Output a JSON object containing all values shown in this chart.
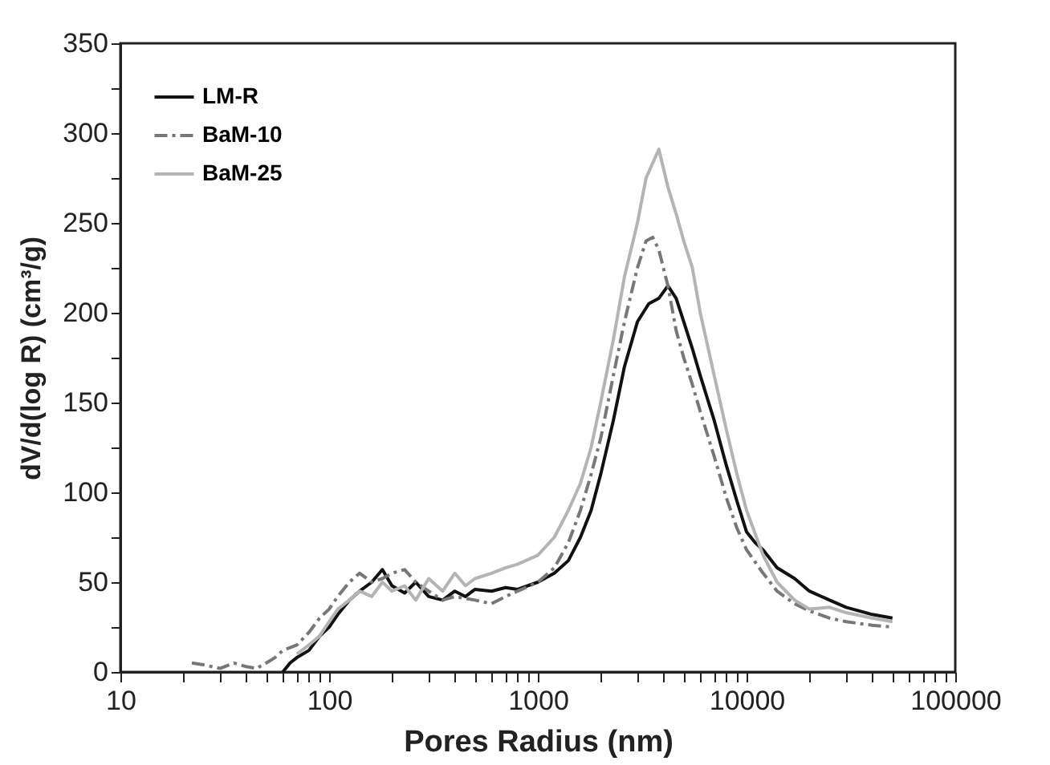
{
  "chart_data": {
    "type": "line",
    "xlabel": "Pores Radius (nm)",
    "ylabel": "dV/d(log R) (cm³/g)",
    "log": "x",
    "legend": "top left",
    "grid": false,
    "xlim": [
      10,
      100000
    ],
    "ylim": [
      0,
      350
    ],
    "xticks": [
      10,
      {
        "value": 20,
        "label": null
      },
      {
        "value": 30,
        "label": null
      },
      {
        "value": 40,
        "label": null
      },
      {
        "value": 50,
        "label": null
      },
      {
        "value": 60,
        "label": null
      },
      {
        "value": 70,
        "label": null
      },
      {
        "value": 80,
        "label": null
      },
      {
        "value": 90,
        "label": null
      },
      100,
      {
        "value": 200,
        "label": null
      },
      {
        "value": 300,
        "label": null
      },
      {
        "value": 400,
        "label": null
      },
      {
        "value": 500,
        "label": null
      },
      {
        "value": 600,
        "label": null
      },
      {
        "value": 700,
        "label": null
      },
      {
        "value": 800,
        "label": null
      },
      {
        "value": 900,
        "label": null
      },
      1000,
      {
        "value": 2000,
        "label": null
      },
      {
        "value": 3000,
        "label": null
      },
      {
        "value": 4000,
        "label": null
      },
      {
        "value": 5000,
        "label": null
      },
      {
        "value": 6000,
        "label": null
      },
      {
        "value": 7000,
        "label": null
      },
      {
        "value": 8000,
        "label": null
      },
      {
        "value": 9000,
        "label": null
      },
      10000,
      {
        "value": 20000,
        "label": null
      },
      {
        "value": 30000,
        "label": null
      },
      {
        "value": 40000,
        "label": null
      },
      {
        "value": 50000,
        "label": null
      },
      {
        "value": 60000,
        "label": null
      },
      {
        "value": 70000,
        "label": null
      },
      {
        "value": 80000,
        "label": null
      },
      {
        "value": 90000,
        "label": null
      },
      100000
    ],
    "yticks": [
      0,
      {
        "value": 25,
        "label": null
      },
      50,
      {
        "value": 75,
        "label": null
      },
      100,
      {
        "value": 125,
        "label": null
      },
      150,
      {
        "value": 175,
        "label": null
      },
      200,
      {
        "value": 225,
        "label": null
      },
      250,
      {
        "value": 275,
        "label": null
      },
      300,
      {
        "value": 325,
        "label": null
      },
      350
    ],
    "series": [
      {
        "name": "LM-R",
        "color": "#111111",
        "line_style": "solid",
        "x": [
          60,
          65,
          70,
          80,
          90,
          100,
          110,
          125,
          140,
          160,
          180,
          200,
          230,
          260,
          300,
          350,
          400,
          450,
          500,
          600,
          700,
          800,
          1000,
          1200,
          1400,
          1600,
          1800,
          2000,
          2300,
          2600,
          3000,
          3400,
          3800,
          4200,
          4600,
          5000,
          5500,
          6000,
          7000,
          8000,
          9000,
          10000,
          11000,
          12000,
          14000,
          17000,
          20000,
          25000,
          30000,
          40000,
          50000
        ],
        "values": [
          0,
          5,
          8,
          12,
          20,
          25,
          32,
          40,
          45,
          50,
          57,
          48,
          44,
          50,
          42,
          40,
          45,
          42,
          46,
          45,
          47,
          46,
          50,
          55,
          62,
          75,
          90,
          110,
          140,
          170,
          195,
          205,
          208,
          215,
          208,
          195,
          180,
          165,
          140,
          115,
          95,
          78,
          72,
          68,
          58,
          52,
          45,
          40,
          36,
          32,
          30
        ]
      },
      {
        "name": "BaM-10",
        "color": "#777777",
        "line_style": "dashdot",
        "x": [
          22,
          25,
          30,
          35,
          40,
          45,
          50,
          55,
          60,
          70,
          80,
          90,
          100,
          110,
          125,
          140,
          160,
          180,
          200,
          230,
          260,
          300,
          350,
          400,
          500,
          600,
          700,
          800,
          1000,
          1200,
          1400,
          1600,
          1800,
          2000,
          2300,
          2600,
          3000,
          3300,
          3550,
          3800,
          4200,
          4600,
          5000,
          5500,
          6000,
          7000,
          8000,
          9000,
          10000,
          12000,
          14000,
          17000,
          20000,
          25000,
          30000,
          40000,
          50000
        ],
        "values": [
          5,
          4,
          2,
          5,
          3,
          2,
          5,
          8,
          12,
          15,
          22,
          30,
          35,
          42,
          50,
          55,
          50,
          52,
          55,
          57,
          50,
          45,
          40,
          42,
          40,
          38,
          42,
          45,
          50,
          58,
          72,
          90,
          110,
          130,
          165,
          195,
          225,
          240,
          242,
          235,
          215,
          190,
          175,
          160,
          145,
          120,
          97,
          80,
          68,
          55,
          45,
          38,
          34,
          30,
          28,
          26,
          25
        ]
      },
      {
        "name": "BaM-25",
        "color": "#b4b4b4",
        "line_style": "solid",
        "x": [
          70,
          80,
          90,
          100,
          110,
          125,
          140,
          160,
          180,
          200,
          230,
          260,
          300,
          350,
          400,
          450,
          500,
          600,
          700,
          800,
          1000,
          1200,
          1400,
          1600,
          1800,
          2000,
          2300,
          2600,
          3000,
          3300,
          3800,
          4200,
          4600,
          5000,
          5500,
          6000,
          7000,
          8000,
          9000,
          10000,
          12000,
          14000,
          17000,
          20000,
          25000,
          30000,
          40000,
          50000
        ],
        "values": [
          10,
          15,
          20,
          28,
          35,
          40,
          45,
          42,
          50,
          45,
          48,
          40,
          52,
          45,
          55,
          48,
          52,
          55,
          58,
          60,
          65,
          75,
          90,
          105,
          125,
          150,
          185,
          220,
          250,
          275,
          291,
          270,
          255,
          240,
          225,
          200,
          165,
          135,
          110,
          90,
          65,
          50,
          40,
          35,
          36,
          33,
          30,
          28
        ]
      }
    ]
  }
}
